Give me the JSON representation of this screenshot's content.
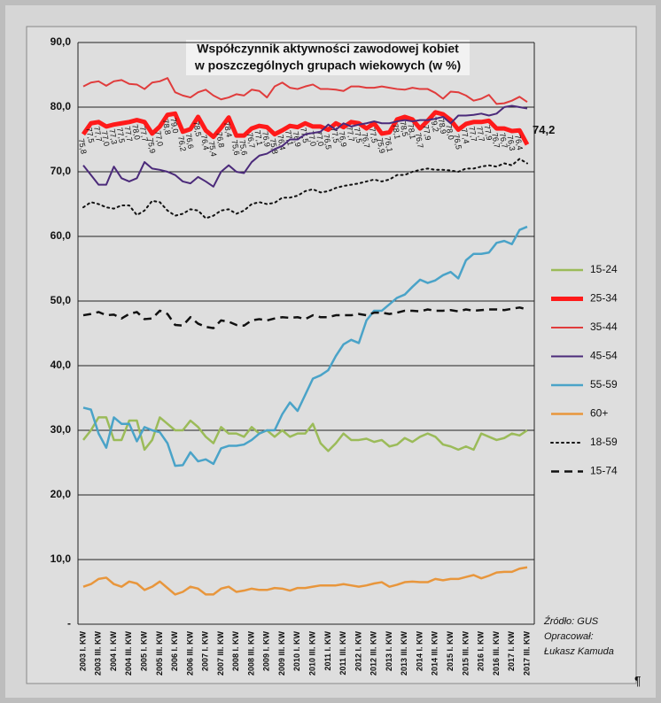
{
  "chart_data": {
    "type": "line",
    "title": "Współczynnik aktywności zawodowej kobiet",
    "subtitle": "w poszczególnych grupach wiekowych (w %)",
    "categories": [
      "2003 I. KW",
      null,
      "2003 III. KW",
      null,
      "2004 I. KW",
      null,
      "2004 III. KW",
      null,
      "2005 I. KW",
      null,
      "2005 III. KW",
      null,
      "2006 I. KW",
      null,
      "2006 III. KW",
      null,
      "2007 I. KW",
      null,
      "2007 III. KW",
      null,
      "2008 I. KW",
      null,
      "2008 III. KW",
      null,
      "2009 I. KW",
      null,
      "2009 III. KW",
      null,
      "2010 I. KW",
      null,
      "2010 III. KW",
      null,
      "2011 I. KW",
      null,
      "2011 III. KW",
      null,
      "2012 I. KW",
      null,
      "2012 III. KW",
      null,
      "2013 I. KW",
      null,
      "2013 III. KW",
      null,
      "2014 I. KW",
      null,
      "2014 III. KW",
      null,
      "2015 I. KW",
      null,
      "2015 III. KW",
      null,
      "2016 I. KW",
      null,
      "2016 III. KW",
      null,
      "2017 I. KW",
      null,
      "2017 III. KW"
    ],
    "series": [
      {
        "name": "15-24",
        "color": "#9bbb59",
        "width": 2.5,
        "style": "solid",
        "values": [
          28.5,
          30,
          32,
          32,
          28.5,
          28.5,
          31.5,
          31.5,
          27,
          28.5,
          32,
          31,
          30,
          30,
          31.5,
          30.5,
          29,
          28,
          30.5,
          29.5,
          29.5,
          29,
          30.5,
          29.5,
          30,
          29,
          30,
          29,
          29.5,
          29.5,
          31,
          28,
          26.8,
          28,
          29.5,
          28.5,
          28.5,
          28.7,
          28.2,
          28.5,
          27.5,
          27.8,
          28.8,
          28.2,
          29,
          29.5,
          29,
          27.8,
          27.5,
          27,
          27.5,
          27,
          29.5,
          29,
          28.5,
          28.8,
          29.5,
          29.2,
          30
        ]
      },
      {
        "name": "25-34",
        "color": "#ff1a1a",
        "width": 5,
        "style": "solid",
        "values": [
          75.8,
          77.5,
          77.7,
          77.0,
          77.3,
          77.5,
          77.7,
          78.0,
          77.7,
          75.9,
          77.0,
          78.8,
          79.0,
          76.2,
          76.6,
          78.5,
          76.4,
          75.4,
          76.8,
          78.4,
          75.6,
          75.6,
          76.7,
          77.1,
          76.9,
          75.8,
          76.4,
          77.1,
          76.9,
          77.5,
          77.0,
          77.0,
          76.5,
          77.5,
          76.9,
          77.7,
          77.5,
          76.7,
          77.5,
          75.9,
          76.1,
          78.1,
          78.5,
          78.1,
          76.7,
          77.9,
          79.2,
          78.9,
          78.0,
          76.5,
          77.4,
          77.7,
          77.7,
          77.9,
          76.7,
          76.7,
          76.3,
          76.4,
          74.2
        ],
        "value_labels": [
          "75,8",
          "77,5",
          "77,7",
          "77,0",
          "77,3",
          "77,5",
          "77,7",
          "78,0",
          "77,7",
          "75,9",
          "77,0",
          "78,8",
          "79,0",
          "76,2",
          "76,6",
          "78,5",
          "76,4",
          "75,4",
          "76,8",
          "78,4",
          "75,6",
          "75,6",
          "76,7",
          "77,1",
          "76,9",
          "75,8",
          "76,4",
          "77,1",
          "76,9",
          "77,5",
          "77,0",
          "77,0",
          "76,5",
          "77,5",
          "76,9",
          "77,7",
          "77,5",
          "76,7",
          "77,5",
          "75,9",
          "76,1",
          "78,1",
          "78,5",
          "78,1",
          "76,7",
          "77,9",
          "79,2",
          "78,9",
          "78,0",
          "76,5",
          "77,4",
          "77,7",
          "77,7",
          "77,9",
          "76,7",
          "76,7",
          "76,3",
          "76,4",
          "74,2"
        ]
      },
      {
        "name": "35-44",
        "color": "#e03c3c",
        "width": 2,
        "style": "solid",
        "values": [
          83.2,
          83.8,
          84,
          83.3,
          84,
          84.2,
          83.6,
          83.5,
          82.8,
          83.8,
          84,
          84.5,
          82.3,
          81.8,
          81.5,
          82.3,
          82.7,
          81.8,
          81.2,
          81.5,
          82,
          81.8,
          82.7,
          82.5,
          81.5,
          83.2,
          83.8,
          83,
          82.8,
          83.2,
          83.5,
          82.8,
          82.8,
          82.7,
          82.5,
          83.2,
          83.2,
          83,
          83,
          83.2,
          83,
          82.8,
          82.7,
          83,
          82.8,
          82.8,
          82.2,
          81.3,
          82.4,
          82.3,
          81.8,
          81,
          81.3,
          81.9,
          80.5,
          80.6,
          81,
          81.6,
          80.8
        ]
      },
      {
        "name": "45-54",
        "color": "#4b2a7a",
        "width": 2,
        "style": "solid",
        "values": [
          71,
          69.5,
          68,
          68,
          70.8,
          69,
          68.5,
          69,
          71.5,
          70.5,
          70.3,
          70,
          69.5,
          68.5,
          68.2,
          69.2,
          68.5,
          67.7,
          70,
          71,
          70,
          69.8,
          71.5,
          72.5,
          72.8,
          73.5,
          74,
          75,
          75,
          75.8,
          76,
          76.2,
          77.3,
          76.5,
          77.5,
          77,
          77.3,
          77.5,
          77.8,
          77.5,
          77.5,
          77.8,
          78,
          77.8,
          78,
          78,
          78.2,
          78.5,
          77.5,
          78.7,
          78.7,
          78.8,
          79,
          78.7,
          79,
          80,
          80.2,
          80,
          79.8
        ]
      },
      {
        "name": "55-59",
        "color": "#4aa3c8",
        "width": 2.5,
        "style": "solid",
        "values": [
          33.5,
          33.2,
          29.5,
          27.3,
          32,
          31,
          31,
          28.3,
          30.5,
          30,
          29.7,
          28,
          24.5,
          24.6,
          26.6,
          25.2,
          25.5,
          24.8,
          27.2,
          27.6,
          27.6,
          27.8,
          28.5,
          29.5,
          30,
          30,
          32.5,
          34.3,
          33,
          35.5,
          38,
          38.5,
          39.3,
          41.5,
          43.3,
          44,
          43.5,
          47,
          48.5,
          48.5,
          49.5,
          50.5,
          51,
          52.2,
          53.3,
          52.8,
          53.2,
          54,
          54.5,
          53.5,
          56.3,
          57.3,
          57.3,
          57.5,
          59,
          59.3,
          58.8,
          61,
          61.5
        ]
      },
      {
        "name": "60+",
        "color": "#e8963c",
        "width": 2.5,
        "style": "solid",
        "values": [
          5.8,
          6.2,
          7,
          7.2,
          6.2,
          5.8,
          6.6,
          6.3,
          5.3,
          5.8,
          6.6,
          5.6,
          4.6,
          5.0,
          5.8,
          5.5,
          4.6,
          4.6,
          5.5,
          5.8,
          5,
          5.2,
          5.5,
          5.3,
          5.3,
          5.6,
          5.5,
          5.2,
          5.6,
          5.6,
          5.8,
          6,
          6,
          6,
          6.2,
          6,
          5.8,
          6,
          6.3,
          6.5,
          5.8,
          6.1,
          6.5,
          6.6,
          6.5,
          6.5,
          7,
          6.8,
          7,
          7.0,
          7.3,
          7.6,
          7.1,
          7.5,
          8,
          8.1,
          8.1,
          8.6,
          8.8
        ]
      },
      {
        "name": "18-59",
        "color": "#111111",
        "width": 2,
        "style": "dotted",
        "values": [
          64.5,
          65.3,
          65,
          64.5,
          64.3,
          64.8,
          64.8,
          63.3,
          64,
          65.5,
          65.3,
          64,
          63.2,
          63.5,
          64.2,
          64,
          62.8,
          63.2,
          64,
          64.2,
          63.5,
          64,
          65,
          65.3,
          65,
          65.2,
          66,
          66,
          66.3,
          67,
          67.3,
          66.8,
          67,
          67.5,
          67.8,
          68,
          68.2,
          68.5,
          68.8,
          68.5,
          68.8,
          69.5,
          69.5,
          70,
          70.3,
          70.5,
          70.3,
          70.3,
          70.2,
          70,
          70.5,
          70.5,
          70.8,
          71,
          70.8,
          71.3,
          71,
          72,
          71.3
        ]
      },
      {
        "name": "15-74",
        "color": "#111111",
        "width": 2.5,
        "style": "dashed",
        "values": [
          47.8,
          48,
          48.3,
          47.8,
          47.9,
          47.3,
          48,
          48.3,
          47.2,
          47.3,
          48.5,
          48,
          46.3,
          46.2,
          47.5,
          46.5,
          46,
          45.8,
          47,
          46.8,
          46.3,
          46.2,
          47,
          47.2,
          47,
          47.3,
          47.5,
          47.4,
          47.5,
          47.2,
          47.8,
          47.5,
          47.5,
          47.8,
          47.8,
          47.8,
          48,
          47.8,
          48.2,
          48.2,
          48,
          48.2,
          48.5,
          48.5,
          48.4,
          48.7,
          48.5,
          48.5,
          48.6,
          48.4,
          48.7,
          48.5,
          48.6,
          48.7,
          48.7,
          48.6,
          48.8,
          49,
          48.7
        ]
      }
    ],
    "ylim": [
      0,
      90
    ],
    "yticks": [
      {
        "value": 0,
        "label": "-"
      },
      {
        "value": 10,
        "label": "10,0"
      },
      {
        "value": 20,
        "label": "20,0"
      },
      {
        "value": 30,
        "label": "30,0"
      },
      {
        "value": 40,
        "label": "40,0"
      },
      {
        "value": 50,
        "label": "50,0"
      },
      {
        "value": 60,
        "label": "60,0"
      },
      {
        "value": 70,
        "label": "70,0"
      },
      {
        "value": 80,
        "label": "80,0"
      },
      {
        "value": 90,
        "label": "90,0"
      }
    ],
    "grid": true,
    "legend": "right",
    "annotations": [
      "Źródło: GUS",
      "Opracował:",
      "Łukasz Kamuda",
      "¶"
    ]
  }
}
